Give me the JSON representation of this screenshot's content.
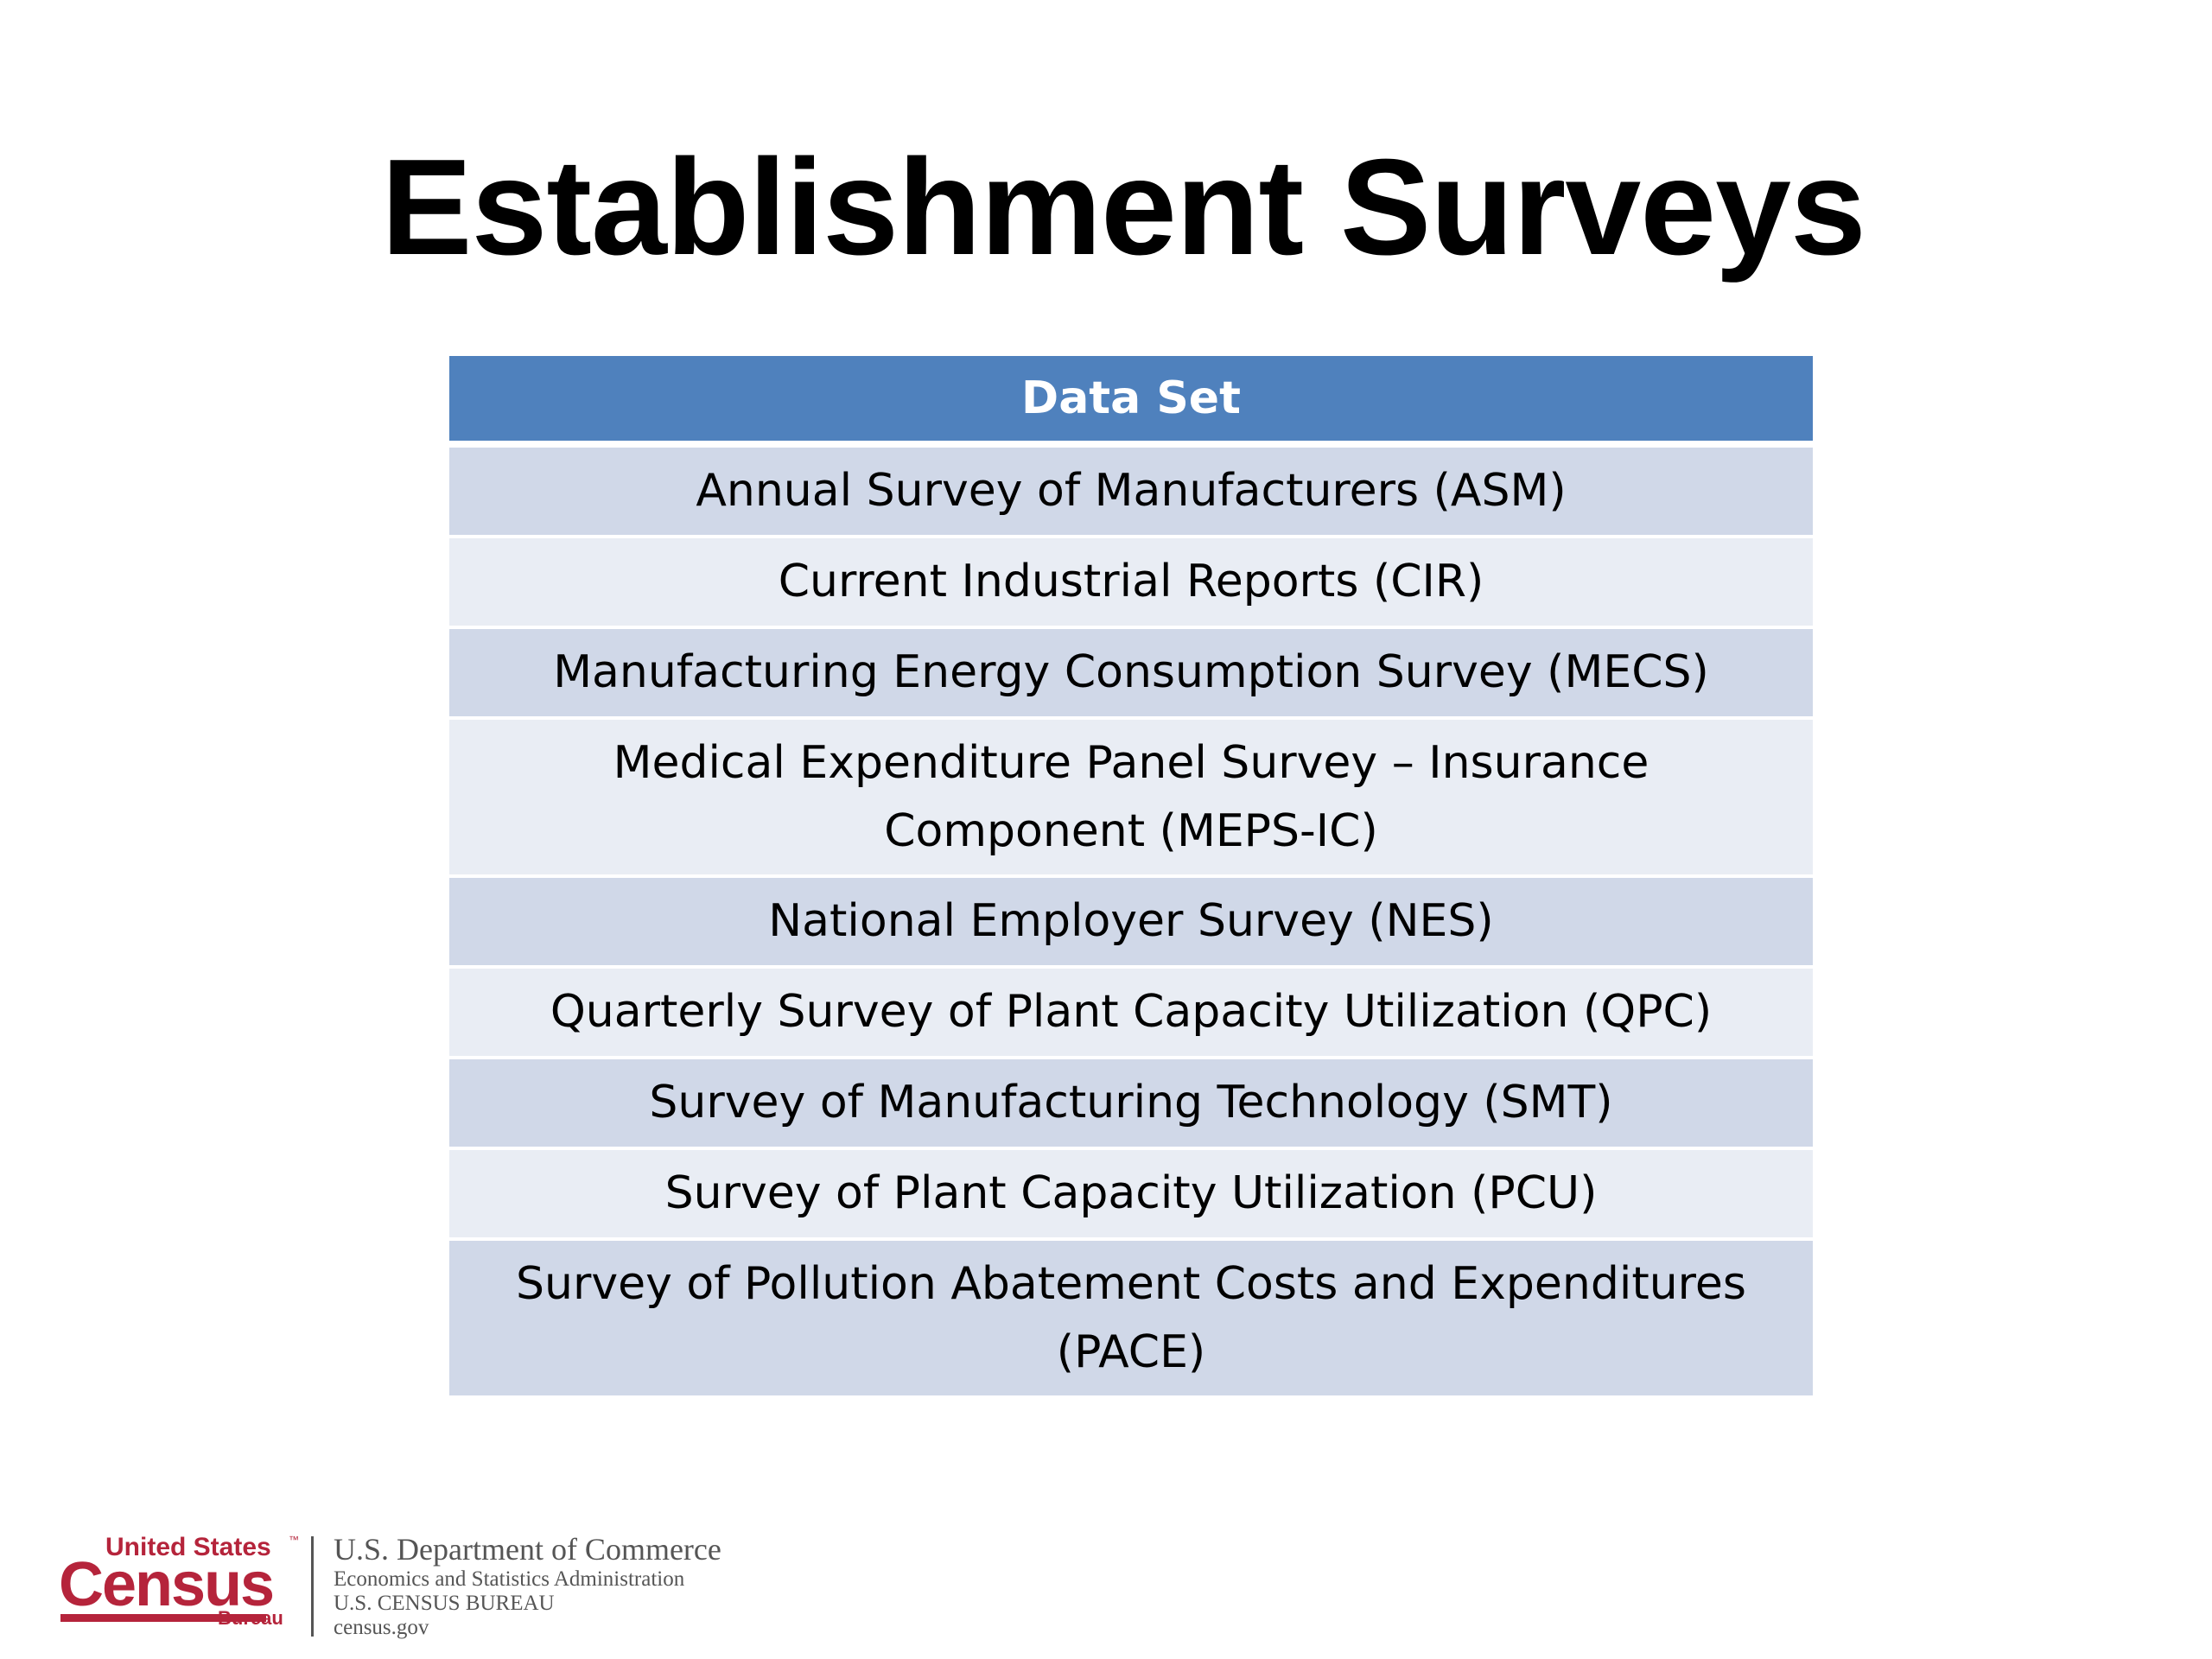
{
  "slide": {
    "title": "Establishment Surveys"
  },
  "table": {
    "header": "Data Set",
    "rows": [
      "Annual Survey of Manufacturers (ASM)",
      "Current Industrial Reports (CIR)",
      "Manufacturing Energy Consumption Survey (MECS)",
      "Medical Expenditure Panel Survey – Insurance Component (MEPS-IC)",
      "National Employer Survey (NES)",
      "Quarterly Survey of Plant Capacity Utilization (QPC)",
      "Survey of Manufacturing Technology (SMT)",
      "Survey of Plant Capacity Utilization (PCU)",
      "Survey of Pollution Abatement Costs and Expenditures (PACE)"
    ]
  },
  "footer": {
    "logo_top": "United States",
    "logo_tm": "™",
    "logo_main": "Census",
    "logo_bottom": "Bureau",
    "dept": "U.S. Department of Commerce",
    "line1": "Economics and Statistics Administration",
    "line2": "U.S. CENSUS BUREAU",
    "line3": "census.gov"
  },
  "colors": {
    "header_bg": "#4f81bd",
    "row_odd": "#d0d8e8",
    "row_even": "#e9edf4",
    "logo_red": "#b5243b"
  }
}
